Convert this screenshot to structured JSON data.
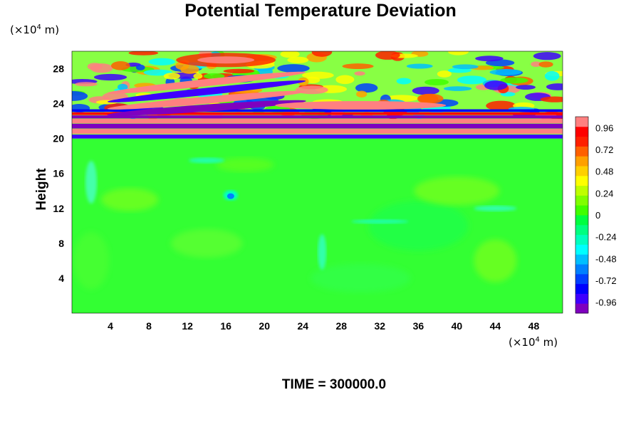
{
  "chart_data": {
    "type": "heatmap",
    "title": "Potential Temperature Deviation",
    "ylabel": "Height",
    "xlabel": "",
    "x_unit": {
      "prefix": "(×10",
      "exp": "4",
      "suffix": " m)"
    },
    "y_unit": {
      "prefix": "(×10",
      "exp": "4",
      "suffix": " m)"
    },
    "xlim": [
      0,
      51
    ],
    "ylim": [
      0,
      30
    ],
    "x_ticks": [
      4,
      8,
      12,
      16,
      20,
      24,
      28,
      32,
      36,
      40,
      44,
      48
    ],
    "y_ticks": [
      4,
      8,
      12,
      16,
      20,
      24,
      28
    ],
    "colorbar": {
      "range": [
        -1.08,
        1.08
      ],
      "tick_values": [
        0.96,
        0.72,
        0.48,
        0.24,
        0,
        -0.24,
        -0.48,
        -0.72,
        -0.96
      ],
      "tick_labels": [
        "0.96",
        "0.72",
        "0.48",
        "0.24",
        "0",
        "-0.24",
        "-0.48",
        "-0.72",
        "-0.96"
      ],
      "colors": [
        "#7f00bf",
        "#3f00ff",
        "#0000ff",
        "#0040ff",
        "#0080ff",
        "#00bfff",
        "#00ffff",
        "#00ffbf",
        "#00ff80",
        "#00ff40",
        "#40ff00",
        "#80ff00",
        "#bfff00",
        "#ffff00",
        "#ffd000",
        "#ffa000",
        "#ff6000",
        "#ff2000",
        "#ff0000",
        "#ff8080"
      ]
    },
    "field_description_values": {
      "lower_region_base": 0,
      "band_top_km": 29.5,
      "layer_boundary": 20
    }
  },
  "footer": {
    "time_label": "TIME = 300000.0"
  }
}
